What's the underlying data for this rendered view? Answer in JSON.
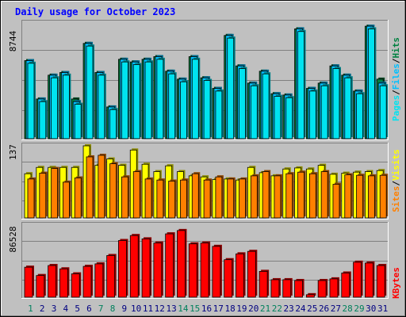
{
  "title": "Daily usage for October 2023",
  "colors": {
    "pages": "#00e3f0",
    "files": "#00c0ff",
    "hits": "#008040",
    "visits": "#ffff00",
    "sites": "#ff8000",
    "kbytes": "#ff0000",
    "title": "#0000ff",
    "weekend": "#00805c",
    "weekday": "#000080",
    "panel": "#c0c0c0"
  },
  "right_labels": {
    "pages": "Pages",
    "files": "Files",
    "hits": "Hits",
    "sep": "/",
    "sites": "Sites",
    "visits": "Visits",
    "kbytes": "KBytes"
  },
  "chart_data": [
    {
      "type": "bar",
      "ylabel_max": "8744",
      "ylim": [
        0,
        8744
      ],
      "grid": true,
      "categories": [
        "1",
        "2",
        "3",
        "4",
        "5",
        "6",
        "7",
        "8",
        "9",
        "10",
        "11",
        "12",
        "13",
        "14",
        "15",
        "16",
        "17",
        "18",
        "19",
        "20",
        "21",
        "22",
        "23",
        "24",
        "25",
        "26",
        "27",
        "28",
        "29",
        "30",
        "31"
      ],
      "weekend_days": [
        "1",
        "7",
        "8",
        "14",
        "15",
        "21",
        "22",
        "28",
        "29"
      ],
      "series": [
        {
          "name": "Hits",
          "values": [
            5900,
            3000,
            4800,
            5000,
            3000,
            7200,
            5000,
            2400,
            6000,
            5800,
            6000,
            6200,
            5100,
            4500,
            6200,
            4600,
            3800,
            7800,
            5500,
            4200,
            5100,
            3400,
            3300,
            8300,
            3800,
            4200,
            5500,
            4800,
            3600,
            8500,
            4500
          ]
        },
        {
          "name": "Files",
          "values": [
            5900,
            3000,
            4800,
            5000,
            2800,
            7200,
            5000,
            2400,
            6000,
            5800,
            6000,
            6200,
            5100,
            4500,
            6200,
            4600,
            3800,
            7800,
            5500,
            4200,
            5100,
            3400,
            3300,
            8300,
            3800,
            4200,
            5500,
            4800,
            3600,
            8500,
            4200
          ]
        },
        {
          "name": "Pages",
          "values": [
            5700,
            2800,
            4600,
            4800,
            2600,
            7000,
            4800,
            2200,
            5800,
            5600,
            5800,
            6000,
            4900,
            4300,
            6000,
            4400,
            3600,
            7600,
            5300,
            4000,
            4900,
            3200,
            3100,
            8100,
            3600,
            4000,
            5300,
            4600,
            3400,
            8300,
            4000
          ]
        }
      ]
    },
    {
      "type": "bar",
      "ylabel_max": "137",
      "ylim": [
        0,
        137
      ],
      "grid": true,
      "categories": [
        "1",
        "2",
        "3",
        "4",
        "5",
        "6",
        "7",
        "8",
        "9",
        "10",
        "11",
        "12",
        "13",
        "14",
        "15",
        "16",
        "17",
        "18",
        "19",
        "20",
        "21",
        "22",
        "23",
        "24",
        "25",
        "26",
        "27",
        "28",
        "29",
        "30",
        "31"
      ],
      "series": [
        {
          "name": "Visits",
          "values": [
            84,
            96,
            96,
            96,
            96,
            137,
            100,
            112,
            100,
            129,
            102,
            88,
            99,
            88,
            80,
            78,
            73,
            74,
            72,
            96,
            86,
            80,
            93,
            95,
            93,
            100,
            83,
            85,
            87,
            88,
            90
          ]
        },
        {
          "name": "Sites",
          "values": [
            74,
            85,
            94,
            68,
            76,
            116,
            119,
            103,
            78,
            88,
            74,
            72,
            70,
            72,
            84,
            72,
            78,
            74,
            74,
            80,
            88,
            80,
            84,
            87,
            84,
            88,
            64,
            82,
            81,
            80,
            81
          ]
        }
      ]
    },
    {
      "type": "bar",
      "ylabel_max": "86528",
      "ylim": [
        0,
        86528
      ],
      "grid": true,
      "categories": [
        "1",
        "2",
        "3",
        "4",
        "5",
        "6",
        "7",
        "8",
        "9",
        "10",
        "11",
        "12",
        "13",
        "14",
        "15",
        "16",
        "17",
        "18",
        "19",
        "20",
        "21",
        "22",
        "23",
        "24",
        "25",
        "26",
        "27",
        "28",
        "29",
        "30",
        "31"
      ],
      "series": [
        {
          "name": "KBytes",
          "values": [
            36000,
            26000,
            38000,
            34000,
            28000,
            37000,
            40000,
            50000,
            68000,
            74000,
            70000,
            65000,
            76000,
            80000,
            64000,
            65000,
            61000,
            45000,
            52000,
            55000,
            31000,
            21000,
            21000,
            20000,
            3000,
            20000,
            22000,
            29000,
            42000,
            41000,
            38000
          ]
        }
      ]
    }
  ]
}
